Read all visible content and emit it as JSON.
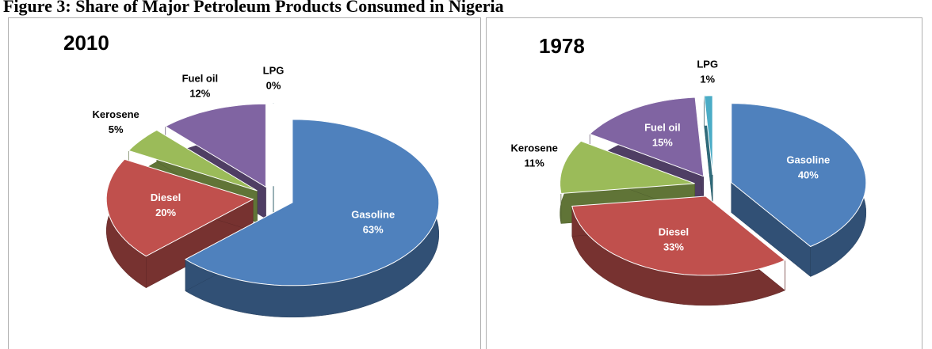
{
  "caption": "Figure 3: Share of Major Petroleum Products Consumed in Nigeria",
  "chart_data": [
    {
      "type": "pie",
      "title": "2010",
      "categories": [
        "Gasoline",
        "Diesel",
        "Kerosene",
        "Fuel oil",
        "LPG"
      ],
      "values": [
        63,
        20,
        5,
        12,
        0
      ],
      "value_labels": [
        "63%",
        "20%",
        "5%",
        "12%",
        "0%"
      ],
      "colors": [
        "#4f81bd",
        "#c0504d",
        "#9bbb59",
        "#8064a2",
        "#4bacc6"
      ]
    },
    {
      "type": "pie",
      "title": "1978",
      "categories": [
        "Gasoline",
        "Diesel",
        "Kerosene",
        "Fuel oil",
        "LPG"
      ],
      "values": [
        40,
        33,
        11,
        15,
        1
      ],
      "value_labels": [
        "40%",
        "33%",
        "11%",
        "15%",
        "1%"
      ],
      "colors": [
        "#4f81bd",
        "#c0504d",
        "#9bbb59",
        "#8064a2",
        "#4bacc6"
      ]
    }
  ]
}
